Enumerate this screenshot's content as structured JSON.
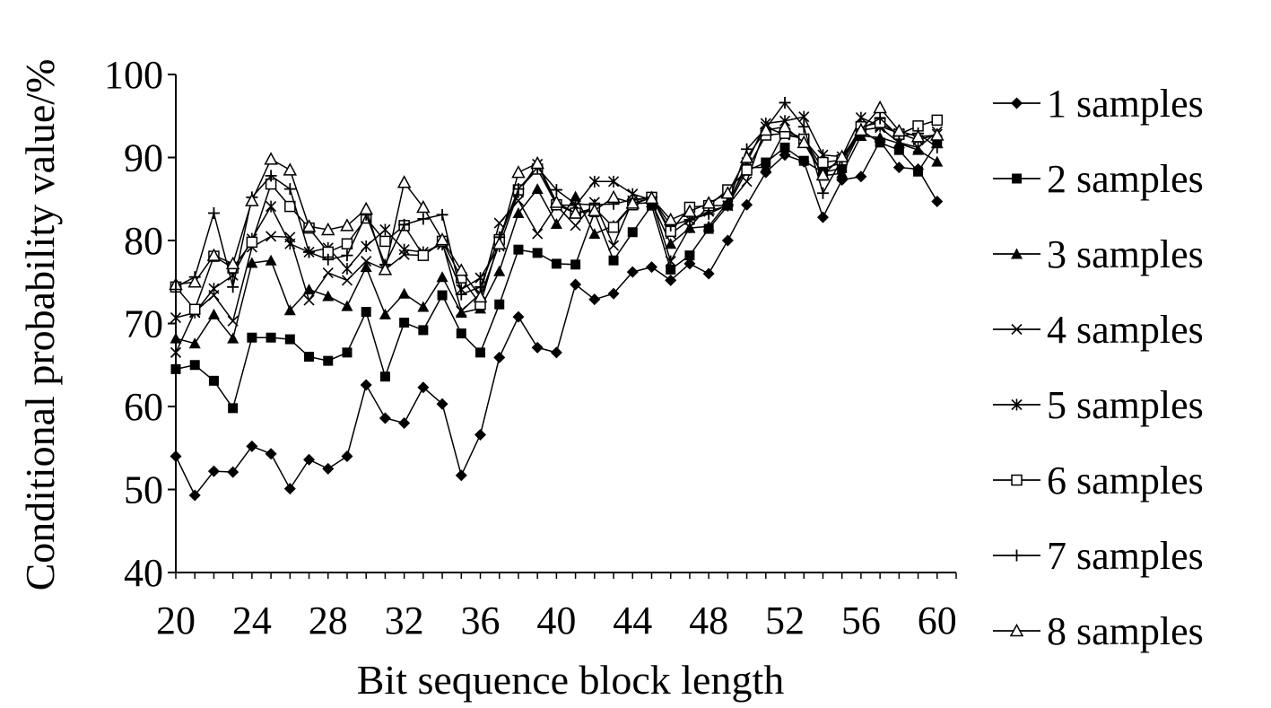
{
  "chart_data": {
    "type": "line",
    "title": "",
    "xlabel": "Bit sequence block length",
    "ylabel": "Conditional probability value/%",
    "xlim": [
      20,
      61
    ],
    "ylim": [
      40,
      100
    ],
    "x_ticks": [
      20,
      24,
      28,
      32,
      36,
      40,
      44,
      48,
      52,
      56,
      60
    ],
    "y_ticks": [
      40,
      50,
      60,
      70,
      80,
      90,
      100
    ],
    "grid": false,
    "legend_position": "right",
    "x": [
      20,
      21,
      22,
      23,
      24,
      25,
      26,
      27,
      28,
      29,
      30,
      31,
      32,
      33,
      34,
      35,
      36,
      37,
      38,
      39,
      40,
      41,
      42,
      43,
      44,
      45,
      46,
      47,
      48,
      49,
      50,
      51,
      52,
      53,
      54,
      55,
      56,
      57,
      58,
      59,
      60
    ],
    "series": [
      {
        "name": "1 samples",
        "marker": "diamond",
        "values": [
          54,
          49.3,
          52.2,
          52.1,
          55.2,
          54.3,
          50.1,
          53.6,
          52.5,
          54,
          62.6,
          58.6,
          58,
          62.3,
          60.3,
          51.7,
          56.6,
          65.9,
          70.8,
          67.1,
          66.5,
          74.7,
          72.9,
          73.6,
          76.2,
          76.8,
          75.2,
          77.2,
          76,
          80,
          84.3,
          88.2,
          90.3,
          89.5,
          82.8,
          87.3,
          87.7,
          92,
          88.8,
          88.6,
          84.7
        ]
      },
      {
        "name": "2 samples",
        "marker": "square-filled",
        "values": [
          64.5,
          65,
          63.1,
          59.8,
          68.3,
          68.3,
          68.1,
          66,
          65.5,
          66.5,
          71.4,
          63.6,
          70.1,
          69.2,
          73.4,
          68.8,
          66.5,
          72.3,
          78.9,
          78.5,
          77.2,
          77.1,
          83.4,
          77.6,
          81,
          84.2,
          76.5,
          78.2,
          81.4,
          84.2,
          88.4,
          89.4,
          91.2,
          89.6,
          88.2,
          88.7,
          93.3,
          91.8,
          90.9,
          88.3,
          91.8
        ]
      },
      {
        "name": "3 samples",
        "marker": "triangle-filled",
        "values": [
          68.2,
          67.6,
          71.1,
          68.2,
          77.3,
          77.6,
          71.6,
          74.1,
          73.3,
          72.1,
          76.8,
          71.1,
          73.6,
          72,
          75.6,
          71.3,
          71.8,
          76.3,
          83.3,
          86.2,
          82,
          85.3,
          80.8,
          81.8,
          84.4,
          84.6,
          79.6,
          81.5,
          81.7,
          84.6,
          88.8,
          88.8,
          93.2,
          92.3,
          87.8,
          88.1,
          92.6,
          92.4,
          91.7,
          90.9,
          89.5
        ]
      },
      {
        "name": "4 samples",
        "marker": "x",
        "values": [
          66.5,
          71.4,
          73.4,
          70.3,
          79.2,
          80.5,
          80.4,
          72.8,
          76.1,
          75.2,
          77.5,
          76.5,
          78.3,
          78.2,
          79.8,
          71.5,
          73.6,
          82.1,
          84.8,
          80.8,
          84.2,
          81.8,
          84.6,
          79.4,
          84.8,
          85.2,
          80.8,
          82.5,
          83.5,
          84.2,
          87.1,
          93.7,
          92.7,
          92.3,
          88.6,
          89.4,
          93.3,
          93.6,
          91.8,
          91.2,
          93.1
        ]
      },
      {
        "name": "5 samples",
        "marker": "asterisk",
        "values": [
          70.7,
          71.3,
          74.2,
          75.8,
          80.2,
          84.1,
          79.6,
          78.6,
          79.1,
          76.6,
          79.3,
          81.3,
          78.9,
          78.6,
          79.5,
          74.1,
          75.5,
          79.3,
          85.8,
          89.2,
          84.3,
          84.2,
          87.1,
          87.1,
          85.6,
          84.9,
          77.5,
          81.6,
          84.2,
          84.2,
          89.4,
          94.1,
          94.4,
          94.9,
          90.3,
          90.1,
          94.8,
          93.8,
          92.9,
          92.1,
          92.8
        ]
      },
      {
        "name": "6 samples",
        "marker": "square-open",
        "values": [
          74.4,
          71.7,
          78.1,
          76.7,
          79.8,
          86.8,
          84.1,
          81.5,
          78.6,
          79.6,
          82.7,
          79.9,
          81.8,
          78.2,
          79.9,
          75.5,
          72.3,
          80.1,
          86.1,
          88.6,
          84.3,
          83.3,
          83.9,
          81.6,
          84.3,
          85.2,
          81.1,
          84,
          84.2,
          86.1,
          88.5,
          92.7,
          92.9,
          92.2,
          89.4,
          89.7,
          93.7,
          94.2,
          92.8,
          93.8,
          94.5
        ]
      },
      {
        "name": "7 samples",
        "marker": "plus",
        "values": [
          74.4,
          75.6,
          83.3,
          74.4,
          85.2,
          87.8,
          86.2,
          78.6,
          77.7,
          78.2,
          83.1,
          77.1,
          81.9,
          82.6,
          83.1,
          73.5,
          74.4,
          80.4,
          86.2,
          88.8,
          86.1,
          84.4,
          84.3,
          84.4,
          84.9,
          85.2,
          81.8,
          82.5,
          83.2,
          84.3,
          91,
          93.5,
          96.6,
          93.7,
          85.7,
          89.8,
          93.4,
          94.7,
          92.6,
          92.9,
          91.2
        ]
      },
      {
        "name": "8 samples",
        "marker": "triangle-open",
        "values": [
          74.7,
          75,
          78.2,
          77.2,
          84.8,
          89.8,
          88.5,
          81.7,
          81.3,
          81.8,
          83.8,
          76.5,
          87,
          84,
          80.1,
          76.4,
          73.2,
          79.6,
          88.2,
          89.3,
          84.6,
          83.3,
          83.6,
          85.2,
          84.5,
          85.1,
          82.5,
          83.5,
          84.5,
          85.7,
          90,
          93.3,
          93.7,
          91.8,
          87.9,
          90.1,
          93.3,
          96,
          93.2,
          92.5,
          92.7
        ]
      }
    ]
  }
}
